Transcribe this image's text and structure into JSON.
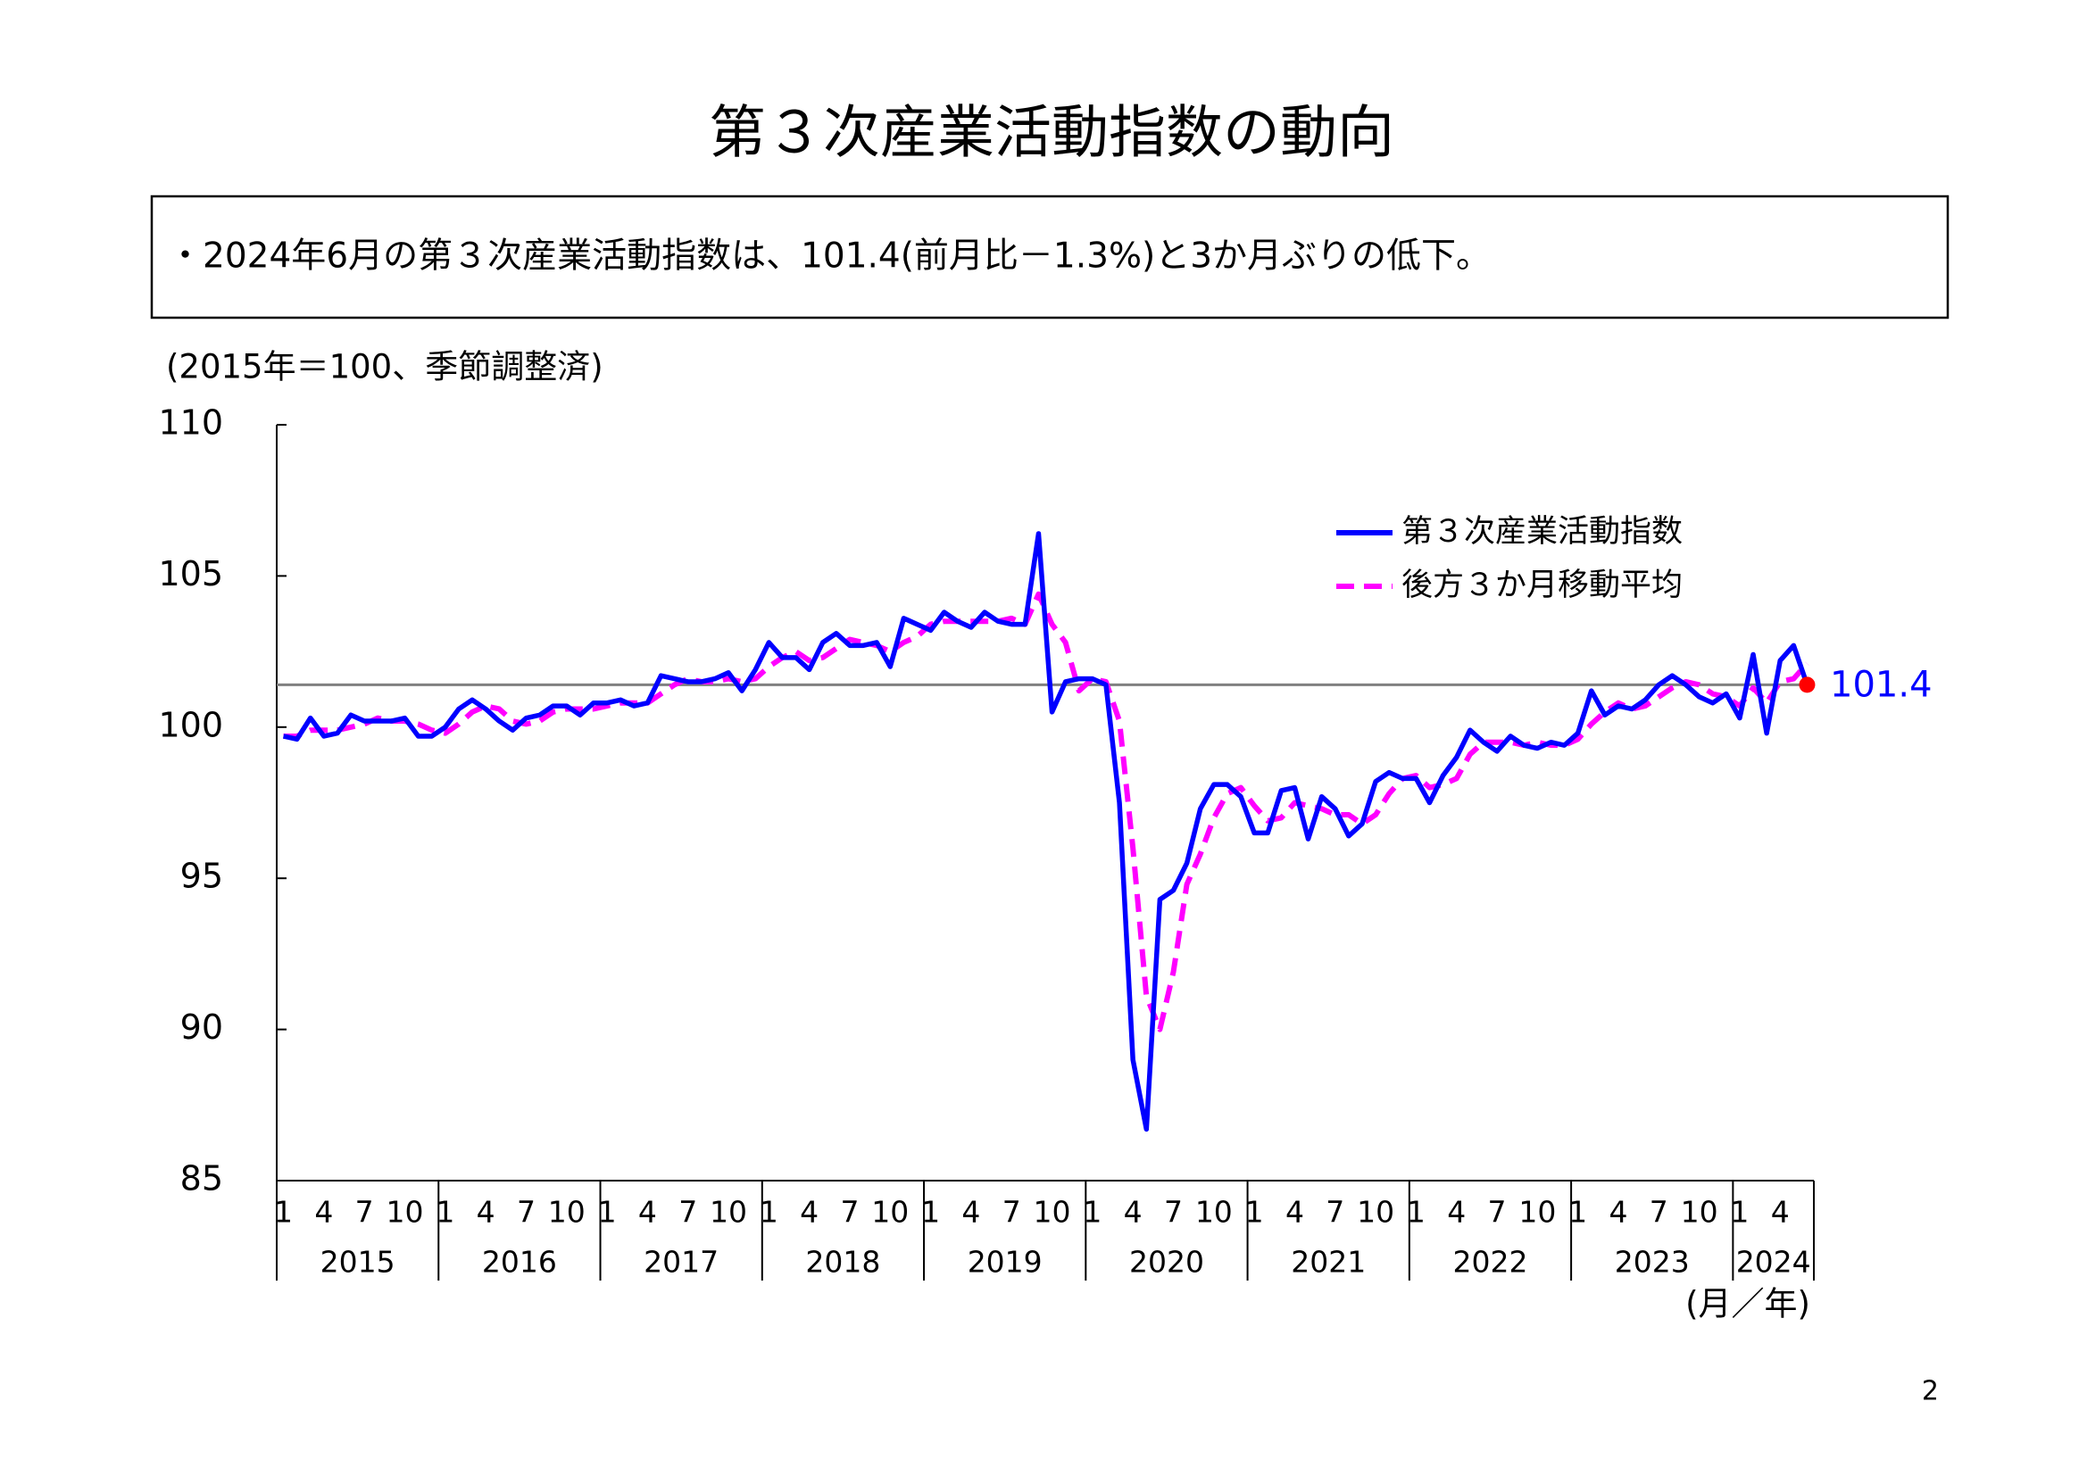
{
  "title": "第３次産業活動指数の動向",
  "summary": "・2024年6月の第３次産業活動指数は、101.4(前月比－1.3%)と3か月ぶりの低下。",
  "page_number": "2",
  "chart_data": {
    "type": "line",
    "y_label": "(2015年＝100、季節調整済)",
    "x_label": "(月／年)",
    "ylim": [
      85,
      110
    ],
    "yticks": [
      85,
      90,
      95,
      100,
      105,
      110
    ],
    "grid": false,
    "legend": "upper right",
    "categories": [
      "1",
      null,
      null,
      "4",
      null,
      null,
      "7",
      null,
      null,
      "10",
      null,
      null,
      "1",
      null,
      null,
      "4",
      null,
      null,
      "7",
      null,
      null,
      "10",
      null,
      null,
      "1",
      null,
      null,
      "4",
      null,
      null,
      "7",
      null,
      null,
      "10",
      null,
      null,
      "1",
      null,
      null,
      "4",
      null,
      null,
      "7",
      null,
      null,
      "10",
      null,
      null,
      "1",
      null,
      null,
      "4",
      null,
      null,
      "7",
      null,
      null,
      "10",
      null,
      null,
      "1",
      null,
      null,
      "4",
      null,
      null,
      "7",
      null,
      null,
      "10",
      null,
      null,
      "1",
      null,
      null,
      "4",
      null,
      null,
      "7",
      null,
      null,
      "10",
      null,
      null,
      "1",
      null,
      null,
      "4",
      null,
      null,
      "7",
      null,
      null,
      "10",
      null,
      null,
      "1",
      null,
      null,
      "4",
      null,
      null,
      "7",
      null,
      null,
      "10",
      null,
      null,
      "1",
      null,
      null,
      "4",
      null,
      null
    ],
    "years": [
      "2015",
      "2016",
      "2017",
      "2018",
      "2019",
      "2020",
      "2021",
      "2022",
      "2023",
      "2024"
    ],
    "series": [
      {
        "name": "第３次産業活動指数",
        "color": "#0000ff",
        "style": "solid",
        "values": [
          99.7,
          99.6,
          100.3,
          99.7,
          99.8,
          100.4,
          100.2,
          100.2,
          100.2,
          100.3,
          99.7,
          99.7,
          100.0,
          100.6,
          100.9,
          100.6,
          100.2,
          99.9,
          100.3,
          100.4,
          100.7,
          100.7,
          100.4,
          100.8,
          100.8,
          100.9,
          100.7,
          100.8,
          101.7,
          101.6,
          101.5,
          101.5,
          101.6,
          101.8,
          101.2,
          101.9,
          102.8,
          102.3,
          102.3,
          101.9,
          102.8,
          103.1,
          102.7,
          102.7,
          102.8,
          102.0,
          103.6,
          103.4,
          103.2,
          103.8,
          103.5,
          103.3,
          103.8,
          103.5,
          103.4,
          103.4,
          106.4,
          100.5,
          101.5,
          101.6,
          101.6,
          101.4,
          97.5,
          89.0,
          86.7,
          94.3,
          94.6,
          95.5,
          97.3,
          98.1,
          98.1,
          97.7,
          96.5,
          96.5,
          97.9,
          98.0,
          96.3,
          97.7,
          97.3,
          96.4,
          96.8,
          98.2,
          98.5,
          98.3,
          98.3,
          97.5,
          98.4,
          99.0,
          99.9,
          99.5,
          99.2,
          99.7,
          99.4,
          99.3,
          99.5,
          99.4,
          99.8,
          101.2,
          100.4,
          100.7,
          100.6,
          100.9,
          101.4,
          101.7,
          101.4,
          101.0,
          100.8,
          101.1,
          100.3,
          102.4,
          99.8,
          102.2,
          102.7,
          101.4
        ]
      },
      {
        "name": "後方３か月移動平均",
        "color": "#ff00ff",
        "style": "dashed",
        "values": [
          99.7,
          99.7,
          99.9,
          99.9,
          99.9,
          100.0,
          100.1,
          100.3,
          100.2,
          100.2,
          100.1,
          99.9,
          99.8,
          100.1,
          100.5,
          100.7,
          100.6,
          100.2,
          100.1,
          100.2,
          100.5,
          100.6,
          100.6,
          100.6,
          100.7,
          100.8,
          100.8,
          100.8,
          101.1,
          101.4,
          101.6,
          101.5,
          101.5,
          101.6,
          101.5,
          101.6,
          102.0,
          102.3,
          102.5,
          102.2,
          102.3,
          102.6,
          102.9,
          102.8,
          102.7,
          102.5,
          102.8,
          103.0,
          103.4,
          103.5,
          103.5,
          103.5,
          103.5,
          103.5,
          103.6,
          103.4,
          104.4,
          103.4,
          102.8,
          101.2,
          101.6,
          101.5,
          100.2,
          96.0,
          91.1,
          90.0,
          91.9,
          94.8,
          95.8,
          97.0,
          97.8,
          98.0,
          97.4,
          96.9,
          97.0,
          97.5,
          97.4,
          97.3,
          97.1,
          97.1,
          96.8,
          97.1,
          97.8,
          98.3,
          98.4,
          98.0,
          98.1,
          98.3,
          99.1,
          99.5,
          99.5,
          99.5,
          99.4,
          99.5,
          99.4,
          99.4,
          99.6,
          100.1,
          100.5,
          100.8,
          100.6,
          100.7,
          101.0,
          101.3,
          101.5,
          101.4,
          101.1,
          101.0,
          100.7,
          101.3,
          100.8,
          101.5,
          101.6,
          102.1
        ]
      }
    ],
    "reference_line": {
      "value": 101.4,
      "label": "101.4",
      "color": "#808080",
      "label_color": "#0000ff",
      "marker_color": "#ff0000"
    }
  }
}
